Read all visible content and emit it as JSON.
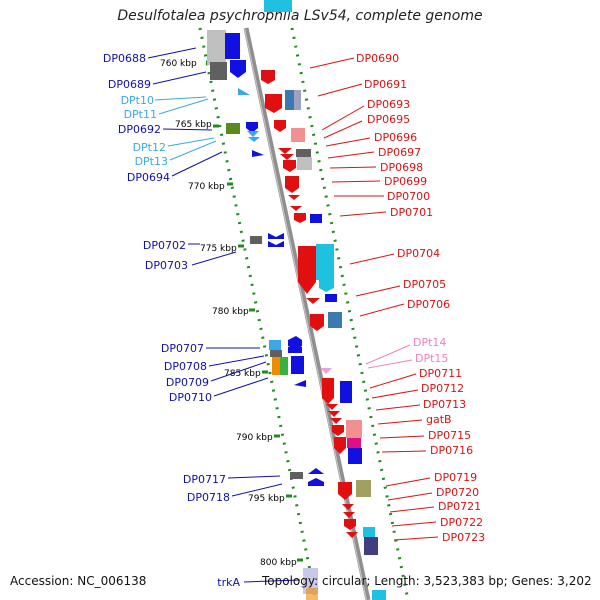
{
  "title": "Desulfotalea psychrophila LSv54, complete genome",
  "accession": "Accession: NC_006138",
  "topology": "Topology: circular; Length: 3,523,383 bp; Genes: 3,202",
  "colors": {
    "backbone": "#909090",
    "scale_dots": "#228b22",
    "left_label": "#1010b0",
    "left_label_rna": "#3aa8e8",
    "right_label": "#e01010",
    "right_label_rna": "#f080c0",
    "ruler_text": "#000000"
  },
  "ruler": [
    "760 kbp",
    "765 kbp",
    "770 kbp",
    "775 kbp",
    "780 kbp",
    "785 kbp",
    "790 kbp",
    "795 kbp",
    "800 kbp"
  ],
  "left_labels": [
    {
      "text": "DP0688",
      "kind": "gene"
    },
    {
      "text": "DP0689",
      "kind": "gene"
    },
    {
      "text": "DPt10",
      "kind": "rna"
    },
    {
      "text": "DPt11",
      "kind": "rna"
    },
    {
      "text": "DP0692",
      "kind": "gene"
    },
    {
      "text": "DPt12",
      "kind": "rna"
    },
    {
      "text": "DPt13",
      "kind": "rna"
    },
    {
      "text": "DP0694",
      "kind": "gene"
    },
    {
      "text": "DP0702",
      "kind": "gene"
    },
    {
      "text": "DP0703",
      "kind": "gene"
    },
    {
      "text": "DP0707",
      "kind": "gene"
    },
    {
      "text": "DP0708",
      "kind": "gene"
    },
    {
      "text": "DP0709",
      "kind": "gene"
    },
    {
      "text": "DP0710",
      "kind": "gene"
    },
    {
      "text": "DP0717",
      "kind": "gene"
    },
    {
      "text": "DP0718",
      "kind": "gene"
    },
    {
      "text": "trkA",
      "kind": "gene"
    }
  ],
  "right_labels": [
    {
      "text": "DP0690",
      "kind": "gene"
    },
    {
      "text": "DP0691",
      "kind": "gene"
    },
    {
      "text": "DP0693",
      "kind": "gene"
    },
    {
      "text": "DP0695",
      "kind": "gene"
    },
    {
      "text": "DP0696",
      "kind": "gene"
    },
    {
      "text": "DP0697",
      "kind": "gene"
    },
    {
      "text": "DP0698",
      "kind": "gene"
    },
    {
      "text": "DP0699",
      "kind": "gene"
    },
    {
      "text": "DP0700",
      "kind": "gene"
    },
    {
      "text": "DP0701",
      "kind": "gene"
    },
    {
      "text": "DP0704",
      "kind": "gene"
    },
    {
      "text": "DP0705",
      "kind": "gene"
    },
    {
      "text": "DP0706",
      "kind": "gene"
    },
    {
      "text": "DPt14",
      "kind": "rna"
    },
    {
      "text": "DPt15",
      "kind": "rna"
    },
    {
      "text": "DP0711",
      "kind": "gene"
    },
    {
      "text": "DP0712",
      "kind": "gene"
    },
    {
      "text": "DP0713",
      "kind": "gene"
    },
    {
      "text": "gatB",
      "kind": "gene"
    },
    {
      "text": "DP0715",
      "kind": "gene"
    },
    {
      "text": "DP0716",
      "kind": "gene"
    },
    {
      "text": "DP0719",
      "kind": "gene"
    },
    {
      "text": "DP0720",
      "kind": "gene"
    },
    {
      "text": "DP0721",
      "kind": "gene"
    },
    {
      "text": "DP0722",
      "kind": "gene"
    },
    {
      "text": "DP0723",
      "kind": "gene"
    }
  ]
}
